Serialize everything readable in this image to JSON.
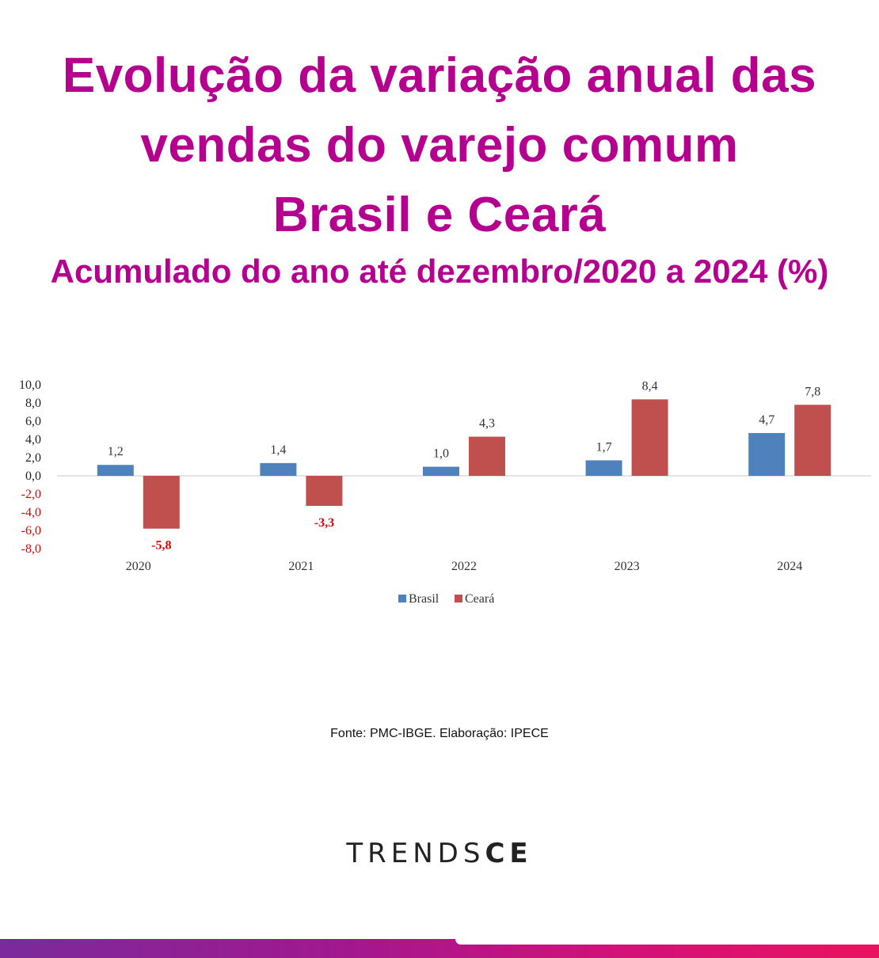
{
  "header": {
    "title_lines": [
      "Evolução da variação anual das",
      "vendas do varejo comum",
      "Brasil e Ceará"
    ],
    "subtitle": "Acumulado do ano até dezembro/2020 a 2024 (%)"
  },
  "chart_data": {
    "type": "bar",
    "categories": [
      "2020",
      "2021",
      "2022",
      "2023",
      "2024"
    ],
    "series": [
      {
        "name": "Brasil",
        "values": [
          1.2,
          1.4,
          1.0,
          1.7,
          4.7
        ],
        "labels": [
          "1,2",
          "1,4",
          "1,0",
          "1,7",
          "4,7"
        ],
        "color": "#4f81bd"
      },
      {
        "name": "Ceará",
        "values": [
          -5.8,
          -3.3,
          4.3,
          8.4,
          7.8
        ],
        "labels": [
          "-5,8",
          "-3,3",
          "4,3",
          "8,4",
          "7,8"
        ],
        "color": "#c0504d"
      }
    ],
    "ylim": [
      -8,
      10
    ],
    "yticks": [
      10,
      8,
      6,
      4,
      2,
      0,
      -2,
      -4,
      -6,
      -8
    ],
    "ytick_labels": [
      "10,0",
      "8,0",
      "6,0",
      "4,0",
      "2,0",
      "0,0",
      "-2,0",
      "-4,0",
      "-6,0",
      "-8,0"
    ],
    "negative_label_color": "#e00000",
    "legend": "bottom-center",
    "grid": false
  },
  "source": "Fonte: PMC-IBGE. Elaboração: IPECE",
  "brand": {
    "thin": "TRENDS",
    "bold": "CE"
  }
}
